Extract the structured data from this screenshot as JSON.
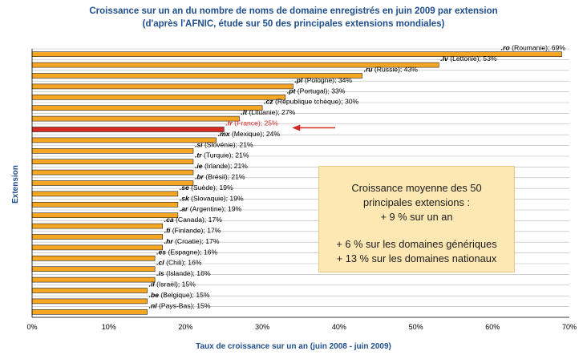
{
  "chart_data": {
    "type": "bar",
    "orientation": "horizontal",
    "title": "Croissance sur un an du nombre de noms de domaine enregistrés en juin 2009 par extension",
    "subtitle": "(d'après l'AFNIC, étude sur 50 des principales extensions mondiales)",
    "xlabel": "Taux de croissance sur un an (juin 2008 - juin 2009)",
    "ylabel": "Extension",
    "xlim": [
      0,
      70
    ],
    "xticks": [
      "0%",
      "10%",
      "20%",
      "30%",
      "40%",
      "50%",
      "60%",
      "70%"
    ],
    "colors": {
      "bar": "#f5a623",
      "highlight": "#d62a22",
      "title": "#1f4e8c"
    },
    "bars": [
      {
        "ext": ".ro",
        "rest": " (Roumanie); 69%",
        "value": 69
      },
      {
        "ext": ".lv",
        "rest": " (Lettonie); 53%",
        "value": 53
      },
      {
        "ext": ".ru",
        "rest": " (Russie); 43%",
        "value": 43
      },
      {
        "ext": ".pl",
        "rest": " (Pologne); 34%",
        "value": 34
      },
      {
        "ext": ".pt",
        "rest": " (Portugal); 33%",
        "value": 33
      },
      {
        "ext": ".cz",
        "rest": " (République tchèque); 30%",
        "value": 30
      },
      {
        "ext": ".lt",
        "rest": " (Lituanie); 27%",
        "value": 27
      },
      {
        "ext": ".fr",
        "rest": " (France); 25%",
        "value": 25,
        "highlight": true
      },
      {
        "ext": ".mx",
        "rest": " (Mexique); 24%",
        "value": 24
      },
      {
        "ext": ".si",
        "rest": " (Slovénie); 21%",
        "value": 21
      },
      {
        "ext": ".tr",
        "rest": " (Turquie); 21%",
        "value": 21
      },
      {
        "ext": ".ie",
        "rest": " (Irlande); 21%",
        "value": 21
      },
      {
        "ext": ".br",
        "rest": " (Brésil); 21%",
        "value": 21
      },
      {
        "ext": ".se",
        "rest": " (Suède); 19%",
        "value": 19
      },
      {
        "ext": ".sk",
        "rest": " (Slovaquie); 19%",
        "value": 19
      },
      {
        "ext": ".ar",
        "rest": " (Argentine); 19%",
        "value": 19
      },
      {
        "ext": ".ca",
        "rest": " (Canada); 17%",
        "value": 17
      },
      {
        "ext": ".fi",
        "rest": " (Finlande); 17%",
        "value": 17
      },
      {
        "ext": ".hr",
        "rest": " (Croatie); 17%",
        "value": 17
      },
      {
        "ext": ".es",
        "rest": " (Espagne); 16%",
        "value": 16
      },
      {
        "ext": ".cl",
        "rest": " (Chili); 16%",
        "value": 16
      },
      {
        "ext": ".is",
        "rest": " (Islande); 16%",
        "value": 16
      },
      {
        "ext": ".il",
        "rest": " (Israël); 15%",
        "value": 15
      },
      {
        "ext": ".be",
        "rest": " (Belgique); 15%",
        "value": 15
      },
      {
        "ext": ".nl",
        "rest": " (Pays-Bas); 15%",
        "value": 15
      }
    ],
    "annotation": {
      "lines": [
        "Croissance moyenne des 50",
        "principales extensions  :",
        "+ 9 % sur un an",
        "+ 6 % sur les domaines génériques",
        "+ 13 % sur les domaines nationaux"
      ]
    }
  }
}
